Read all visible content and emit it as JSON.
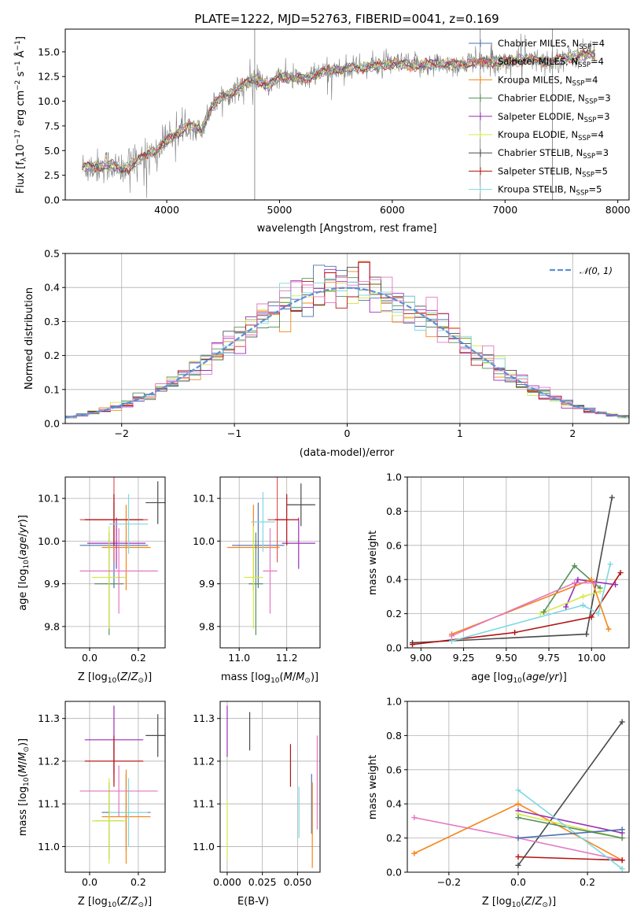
{
  "colors": {
    "Chabrier MILES": "#4c72b0",
    "Salpeter MILES": "#e45756",
    "Kroupa MILES": "#f58518",
    "Chabrier ELODIE": "#548f5a",
    "Salpeter ELODIE": "#9a2fb5",
    "Kroupa ELODIE": "#d6e84a",
    "Chabrier STELIB": "#4a4a4a",
    "Salpeter STELIB": "#b31313",
    "Kroupa STELIB": "#7fd8e0",
    "pink": "#e377c2",
    "normal": "#5b8fd6"
  },
  "chart_data": [
    {
      "type": "line",
      "title": "PLATE=1222, MJD=52763, FIBERID=0041, z=0.169",
      "xlabel": "wavelength [Angstrom, rest frame]",
      "ylabel": "Flux [f_λ 10^{-17} erg cm^{-2} s^{-1} Å^{-1}]",
      "xlim": [
        3100,
        8100
      ],
      "ylim": [
        0,
        17.3
      ],
      "xticks": [
        4000,
        5000,
        6000,
        7000,
        8000
      ],
      "yticks": [
        "0.0",
        "2.5",
        "5.0",
        "7.5",
        "10.0",
        "12.5",
        "15.0"
      ],
      "grid": false,
      "legend_position": "right",
      "envelope": {
        "x": [
          3250,
          3400,
          3500,
          3600,
          3700,
          3800,
          3900,
          4000,
          4100,
          4200,
          4300,
          4400,
          4500,
          4600,
          4700,
          4800,
          4900,
          5000,
          5200,
          5400,
          5600,
          5800,
          6000,
          6200,
          6400,
          6600,
          6800,
          7000,
          7200,
          7400,
          7600,
          7800
        ],
        "y": [
          3.3,
          3.4,
          3.6,
          3.0,
          3.5,
          4.5,
          5.0,
          6.0,
          6.8,
          7.6,
          7.0,
          9.5,
          10.5,
          11.0,
          11.8,
          12.2,
          11.5,
          12.5,
          12.2,
          13.0,
          13.3,
          13.5,
          13.8,
          13.6,
          13.8,
          13.7,
          14.0,
          14.0,
          14.2,
          14.0,
          14.5,
          14.8
        ]
      },
      "series": [
        {
          "name": "Chabrier MILES, N_SSP=4",
          "base": "Chabrier MILES",
          "label": "Chabrier MILES, N",
          "sub": "SSP",
          "tail": "=4"
        },
        {
          "name": "Salpeter MILES, N_SSP=4",
          "base": "Salpeter MILES",
          "label": "Salpeter MILES, N",
          "sub": "SSP",
          "tail": "=4"
        },
        {
          "name": "Kroupa MILES, N_SSP=4",
          "base": "Kroupa MILES",
          "label": "Kroupa MILES, N",
          "sub": "SSP",
          "tail": "=4"
        },
        {
          "name": "Chabrier ELODIE, N_SSP=3",
          "base": "Chabrier ELODIE",
          "label": "Chabrier ELODIE, N",
          "sub": "SSP",
          "tail": "=3"
        },
        {
          "name": "Salpeter ELODIE, N_SSP=3",
          "base": "Salpeter ELODIE",
          "label": "Salpeter ELODIE, N",
          "sub": "SSP",
          "tail": "=3"
        },
        {
          "name": "Kroupa ELODIE, N_SSP=4",
          "base": "Kroupa ELODIE",
          "label": "Kroupa ELODIE, N",
          "sub": "SSP",
          "tail": "=4"
        },
        {
          "name": "Chabrier STELIB, N_SSP=3",
          "base": "Chabrier STELIB",
          "label": "Chabrier STELIB, N",
          "sub": "SSP",
          "tail": "=3"
        },
        {
          "name": "Salpeter STELIB, N_SSP=5",
          "base": "Salpeter STELIB",
          "label": "Salpeter STELIB, N",
          "sub": "SSP",
          "tail": "=5"
        },
        {
          "name": "Kroupa STELIB, N_SSP=5",
          "base": "Kroupa STELIB",
          "label": "Kroupa STELIB, N",
          "sub": "SSP",
          "tail": "=5"
        }
      ],
      "vertical_lines": [
        4780,
        6780,
        7420
      ]
    },
    {
      "type": "histogram",
      "xlabel": "(data-model)/error",
      "ylabel": "Normed distribution",
      "xlim": [
        -2.5,
        2.5
      ],
      "ylim": [
        0,
        0.5
      ],
      "xticks": [
        "−2",
        "−1",
        "0",
        "1",
        "2"
      ],
      "yticks": [
        "0.0",
        "0.1",
        "0.2",
        "0.3",
        "0.4",
        "0.5"
      ],
      "grid": true,
      "legend": "𝒩(0, 1)",
      "normal_curve": {
        "mean": 0,
        "sigma": 1
      },
      "bin_width": 0.1
    },
    {
      "type": "errorbar",
      "xlabel": "Z [log10(Z/Z⊙)]",
      "ylabel": "age [log10(age/yr)]",
      "xlim": [
        -0.1,
        0.31
      ],
      "ylim": [
        9.75,
        10.15
      ],
      "xticks": [
        "0.0",
        "0.2"
      ],
      "yticks": [
        "9.8",
        "9.9",
        "10.0",
        "10.1"
      ],
      "points": [
        {
          "c": "Chabrier MILES",
          "x": 0.1,
          "xe": 0.14,
          "y": 9.99,
          "ye": 0.1
        },
        {
          "c": "Salpeter MILES",
          "x": 0.1,
          "xe": 0.14,
          "y": 10.05,
          "ye": 0.1
        },
        {
          "c": "Kroupa MILES",
          "x": 0.15,
          "xe": 0.1,
          "y": 9.985,
          "ye": 0.1
        },
        {
          "c": "Chabrier ELODIE",
          "x": 0.08,
          "xe": 0.06,
          "y": 9.9,
          "ye": 0.12
        },
        {
          "c": "Salpeter ELODIE",
          "x": 0.11,
          "xe": 0.12,
          "y": 9.995,
          "ye": 0.06
        },
        {
          "c": "Kroupa ELODIE",
          "x": 0.08,
          "xe": 0.07,
          "y": 9.915,
          "ye": 0.12
        },
        {
          "c": "Chabrier STELIB",
          "x": 0.28,
          "xe": 0.05,
          "y": 10.09,
          "ye": 0.05
        },
        {
          "c": "Salpeter STELIB",
          "x": 0.1,
          "xe": 0.12,
          "y": 10.05,
          "ye": 0.06
        },
        {
          "c": "Kroupa STELIB",
          "x": 0.16,
          "xe": 0.08,
          "y": 10.04,
          "ye": 0.07
        },
        {
          "c": "pink",
          "x": 0.12,
          "xe": 0.16,
          "y": 9.93,
          "ye": 0.1
        }
      ]
    },
    {
      "type": "errorbar",
      "xlabel": "mass [log10(M/M⊙)]",
      "ylabel": "",
      "xlim": [
        10.92,
        11.34
      ],
      "ylim": [
        9.75,
        10.15
      ],
      "xticks": [
        "11.0",
        "11.2"
      ],
      "yticks": [
        "9.8",
        "9.9",
        "10.0",
        "10.1"
      ],
      "points": [
        {
          "c": "Chabrier MILES",
          "x": 11.08,
          "xe": 0.11,
          "y": 9.99,
          "ye": 0.1
        },
        {
          "c": "Salpeter MILES",
          "x": 11.16,
          "xe": 0.04,
          "y": 10.05,
          "ye": 0.1
        },
        {
          "c": "Kroupa MILES",
          "x": 11.06,
          "xe": 0.11,
          "y": 9.985,
          "ye": 0.1
        },
        {
          "c": "Chabrier ELODIE",
          "x": 11.07,
          "xe": 0.03,
          "y": 9.9,
          "ye": 0.12
        },
        {
          "c": "Salpeter ELODIE",
          "x": 11.25,
          "xe": 0.07,
          "y": 9.995,
          "ye": 0.06
        },
        {
          "c": "Kroupa ELODIE",
          "x": 11.06,
          "xe": 0.04,
          "y": 9.915,
          "ye": 0.12
        },
        {
          "c": "Chabrier STELIB",
          "x": 11.26,
          "xe": 0.06,
          "y": 10.085,
          "ye": 0.05
        },
        {
          "c": "Salpeter STELIB",
          "x": 11.2,
          "xe": 0.05,
          "y": 10.05,
          "ye": 0.06
        },
        {
          "c": "Kroupa STELIB",
          "x": 11.1,
          "xe": 0.05,
          "y": 10.045,
          "ye": 0.07
        },
        {
          "c": "pink",
          "x": 11.13,
          "xe": 0.03,
          "y": 9.93,
          "ye": 0.1
        }
      ]
    },
    {
      "type": "line",
      "xlabel": "age [log10(age/yr)]",
      "ylabel": "mass weight",
      "xlim": [
        8.92,
        10.22
      ],
      "ylim": [
        0,
        1.0
      ],
      "xticks": [
        "9.00",
        "9.25",
        "9.50",
        "9.75",
        "10.00"
      ],
      "yticks": [
        "0.0",
        "0.2",
        "0.4",
        "0.6",
        "0.8",
        "1.0"
      ],
      "grid": true,
      "series": [
        {
          "c": "Chabrier STELIB",
          "x": [
            8.95,
            9.97,
            10.12
          ],
          "y": [
            0.03,
            0.08,
            0.88
          ]
        },
        {
          "c": "Salpeter STELIB",
          "x": [
            8.95,
            9.55,
            10.0,
            10.17
          ],
          "y": [
            0.02,
            0.09,
            0.18,
            0.44
          ]
        },
        {
          "c": "Kroupa STELIB",
          "x": [
            9.18,
            9.95,
            10.04,
            10.11
          ],
          "y": [
            0.04,
            0.25,
            0.2,
            0.49
          ]
        },
        {
          "c": "Chabrier ELODIE",
          "x": [
            9.72,
            9.9,
            10.05
          ],
          "y": [
            0.21,
            0.48,
            0.35
          ]
        },
        {
          "c": "Salpeter ELODIE",
          "x": [
            9.85,
            9.92,
            10.14
          ],
          "y": [
            0.24,
            0.4,
            0.37
          ]
        },
        {
          "c": "Kroupa ELODIE",
          "x": [
            9.7,
            9.95,
            10.05
          ],
          "y": [
            0.2,
            0.3,
            0.33
          ]
        },
        {
          "c": "Kroupa MILES",
          "x": [
            9.18,
            10.0,
            10.1
          ],
          "y": [
            0.08,
            0.4,
            0.11
          ]
        },
        {
          "c": "pink",
          "x": [
            9.18,
            9.9,
            10.02
          ],
          "y": [
            0.07,
            0.38,
            0.38
          ]
        }
      ]
    },
    {
      "type": "errorbar",
      "xlabel": "Z [log10(Z/Z⊙)]",
      "ylabel": "mass [log10(M/M⊙)]",
      "xlim": [
        -0.1,
        0.31
      ],
      "ylim": [
        10.94,
        11.34
      ],
      "xticks": [
        "0.0",
        "0.2"
      ],
      "yticks": [
        "11.0",
        "11.1",
        "11.2",
        "11.3"
      ],
      "points": [
        {
          "c": "Chabrier MILES",
          "x": 0.15,
          "xe": 0.1,
          "y": 11.08,
          "ye": 0.09
        },
        {
          "c": "Salpeter MILES",
          "x": 0.1,
          "xe": 0.12,
          "y": 11.2,
          "ye": 0.05
        },
        {
          "c": "Kroupa MILES",
          "x": 0.15,
          "xe": 0.1,
          "y": 11.07,
          "ye": 0.11
        },
        {
          "c": "Chabrier ELODIE",
          "x": 0.08,
          "xe": 0.06,
          "y": 11.06,
          "ye": 0.09
        },
        {
          "c": "Salpeter ELODIE",
          "x": 0.1,
          "xe": 0.12,
          "y": 11.25,
          "ye": 0.08
        },
        {
          "c": "Kroupa ELODIE",
          "x": 0.08,
          "xe": 0.07,
          "y": 11.06,
          "ye": 0.1
        },
        {
          "c": "Chabrier STELIB",
          "x": 0.28,
          "xe": 0.05,
          "y": 11.26,
          "ye": 0.05
        },
        {
          "c": "Salpeter STELIB",
          "x": 0.1,
          "xe": 0.12,
          "y": 11.2,
          "ye": 0.06
        },
        {
          "c": "Kroupa STELIB",
          "x": 0.16,
          "xe": 0.08,
          "y": 11.08,
          "ye": 0.08
        },
        {
          "c": "pink",
          "x": 0.12,
          "xe": 0.16,
          "y": 11.13,
          "ye": 0.06
        }
      ]
    },
    {
      "type": "errorbar",
      "xlabel": "E(B-V)",
      "ylabel": "",
      "xlim": [
        -0.005,
        0.066
      ],
      "ylim": [
        10.94,
        11.34
      ],
      "xticks": [
        "0.000",
        "0.025",
        "0.050"
      ],
      "yticks": [
        "11.0",
        "11.1",
        "11.2",
        "11.3"
      ],
      "points": [
        {
          "c": "Salpeter ELODIE",
          "x": 0.0,
          "y": 11.27,
          "ye": 0.06
        },
        {
          "c": "Kroupa ELODIE",
          "x": 0.0,
          "y": 11.04,
          "ye": 0.07
        },
        {
          "c": "Chabrier STELIB",
          "x": 0.016,
          "y": 11.27,
          "ye": 0.045
        },
        {
          "c": "Salpeter STELIB",
          "x": 0.045,
          "y": 11.19,
          "ye": 0.05
        },
        {
          "c": "Kroupa STELIB",
          "x": 0.051,
          "y": 11.08,
          "ye": 0.06
        },
        {
          "c": "Chabrier MILES",
          "x": 0.06,
          "y": 11.1,
          "ye": 0.07
        },
        {
          "c": "Kroupa MILES",
          "x": 0.0605,
          "y": 11.05,
          "ye": 0.1
        },
        {
          "c": "pink",
          "x": 0.064,
          "y": 11.15,
          "ye": 0.11
        }
      ]
    },
    {
      "type": "line",
      "xlabel": "Z [log10(Z/Z⊙)]",
      "ylabel": "mass weight",
      "xlim": [
        -0.32,
        0.32
      ],
      "ylim": [
        0,
        1.0
      ],
      "xticks": [
        "−0.2",
        "0.0",
        "0.2"
      ],
      "yticks": [
        "0.0",
        "0.2",
        "0.4",
        "0.6",
        "0.8",
        "1.0"
      ],
      "grid": true,
      "series": [
        {
          "c": "Chabrier STELIB",
          "x": [
            0.0,
            0.3
          ],
          "y": [
            0.04,
            0.88
          ]
        },
        {
          "c": "pink",
          "x": [
            -0.3,
            0.0,
            0.3
          ],
          "y": [
            0.32,
            0.2,
            0.07
          ]
        },
        {
          "c": "Kroupa MILES",
          "x": [
            -0.3,
            0.0,
            0.3
          ],
          "y": [
            0.11,
            0.4,
            0.07
          ]
        },
        {
          "c": "Salpeter ELODIE",
          "x": [
            0.0,
            0.3
          ],
          "y": [
            0.36,
            0.23
          ]
        },
        {
          "c": "Kroupa ELODIE",
          "x": [
            0.0,
            0.3
          ],
          "y": [
            0.34,
            0.2
          ]
        },
        {
          "c": "Chabrier ELODIE",
          "x": [
            0.0,
            0.3
          ],
          "y": [
            0.32,
            0.2
          ]
        },
        {
          "c": "Salpeter STELIB",
          "x": [
            0.0,
            0.3
          ],
          "y": [
            0.09,
            0.07
          ]
        },
        {
          "c": "Kroupa STELIB",
          "x": [
            0.0,
            0.3
          ],
          "y": [
            0.48,
            0.02
          ]
        },
        {
          "c": "Chabrier MILES",
          "x": [
            0.0,
            0.3
          ],
          "y": [
            0.2,
            0.25
          ]
        }
      ]
    }
  ]
}
